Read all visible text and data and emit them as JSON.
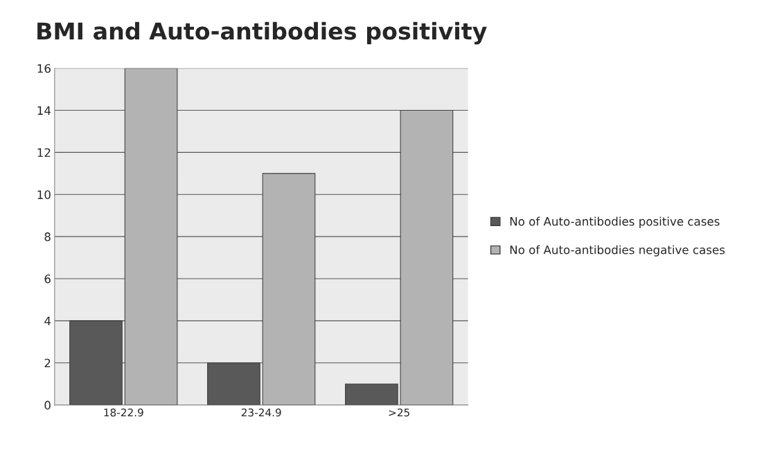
{
  "chart_data": {
    "type": "bar",
    "title": "BMI and Auto-antibodies positivity",
    "categories": [
      "18-22.9",
      "23-24.9",
      ">25"
    ],
    "series": [
      {
        "name": "No of Auto-antibodies positive cases",
        "color": "#595959",
        "values": [
          4,
          2,
          1
        ]
      },
      {
        "name": "No of Auto-antibodies negative cases",
        "color": "#b3b3b3",
        "values": [
          16,
          11,
          14
        ]
      }
    ],
    "ylim": [
      0,
      16
    ],
    "yticks": [
      0,
      2,
      4,
      6,
      8,
      10,
      12,
      14,
      16
    ],
    "grid": "y",
    "legend": "right"
  }
}
